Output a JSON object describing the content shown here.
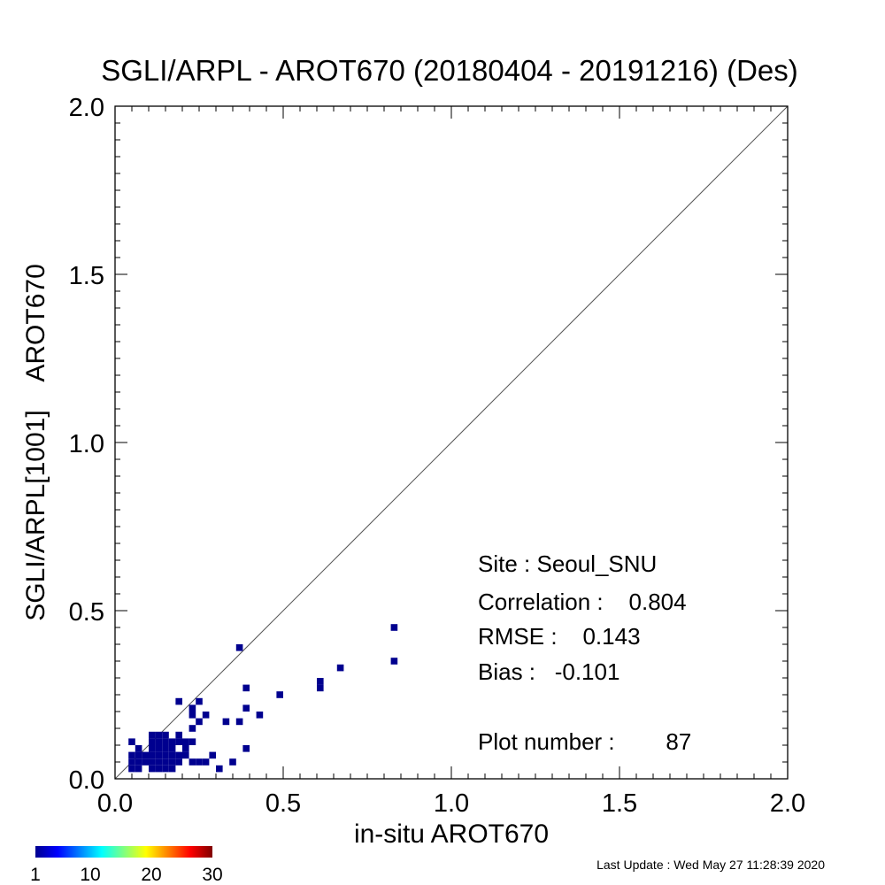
{
  "chart_data": {
    "type": "scatter",
    "title": "SGLI/ARPL - AROT670 (20180404 - 20191216) (Des)",
    "xlabel": "in-situ AROT670",
    "ylabel": "SGLI/ARPL[1001]    AROT670",
    "xlim": [
      0,
      2
    ],
    "ylim": [
      0,
      2
    ],
    "x_ticks": [
      "0.0",
      "0.5",
      "1.0",
      "1.5",
      "2.0"
    ],
    "y_ticks": [
      "0.0",
      "0.5",
      "1.0",
      "1.5",
      "2.0"
    ],
    "one_to_one_line": true,
    "grid": false,
    "bin_size": 0.02,
    "bin_color": "#00008f",
    "points": [
      [
        0.05,
        0.11
      ],
      [
        0.05,
        0.07
      ],
      [
        0.05,
        0.05
      ],
      [
        0.05,
        0.03
      ],
      [
        0.07,
        0.09
      ],
      [
        0.07,
        0.07
      ],
      [
        0.07,
        0.05
      ],
      [
        0.07,
        0.03
      ],
      [
        0.09,
        0.07
      ],
      [
        0.09,
        0.05
      ],
      [
        0.11,
        0.13
      ],
      [
        0.11,
        0.11
      ],
      [
        0.11,
        0.09
      ],
      [
        0.11,
        0.07
      ],
      [
        0.11,
        0.05
      ],
      [
        0.11,
        0.03
      ],
      [
        0.13,
        0.13
      ],
      [
        0.13,
        0.11
      ],
      [
        0.13,
        0.09
      ],
      [
        0.13,
        0.07
      ],
      [
        0.13,
        0.05
      ],
      [
        0.13,
        0.03
      ],
      [
        0.15,
        0.13
      ],
      [
        0.15,
        0.11
      ],
      [
        0.15,
        0.09
      ],
      [
        0.15,
        0.07
      ],
      [
        0.15,
        0.05
      ],
      [
        0.15,
        0.03
      ],
      [
        0.17,
        0.11
      ],
      [
        0.17,
        0.09
      ],
      [
        0.17,
        0.07
      ],
      [
        0.17,
        0.05
      ],
      [
        0.17,
        0.03
      ],
      [
        0.19,
        0.23
      ],
      [
        0.19,
        0.13
      ],
      [
        0.19,
        0.11
      ],
      [
        0.19,
        0.07
      ],
      [
        0.19,
        0.05
      ],
      [
        0.21,
        0.11
      ],
      [
        0.21,
        0.09
      ],
      [
        0.21,
        0.07
      ],
      [
        0.23,
        0.21
      ],
      [
        0.23,
        0.19
      ],
      [
        0.23,
        0.15
      ],
      [
        0.23,
        0.11
      ],
      [
        0.23,
        0.05
      ],
      [
        0.25,
        0.23
      ],
      [
        0.25,
        0.17
      ],
      [
        0.25,
        0.05
      ],
      [
        0.27,
        0.19
      ],
      [
        0.27,
        0.05
      ],
      [
        0.29,
        0.07
      ],
      [
        0.31,
        0.03
      ],
      [
        0.33,
        0.17
      ],
      [
        0.35,
        0.05
      ],
      [
        0.37,
        0.39
      ],
      [
        0.37,
        0.17
      ],
      [
        0.39,
        0.27
      ],
      [
        0.39,
        0.21
      ],
      [
        0.39,
        0.09
      ],
      [
        0.43,
        0.19
      ],
      [
        0.49,
        0.25
      ],
      [
        0.61,
        0.29
      ],
      [
        0.61,
        0.27
      ],
      [
        0.67,
        0.33
      ],
      [
        0.83,
        0.45
      ],
      [
        0.83,
        0.35
      ]
    ],
    "stats": {
      "site": "Site : Seoul_SNU",
      "correlation": "Correlation :    0.804",
      "rmse": "RMSE :    0.143",
      "bias": "Bias :   -0.101",
      "plot_number": "Plot number :        87"
    },
    "colorbar": {
      "ticks": [
        "1",
        "10",
        "20",
        "30"
      ],
      "values": [
        1,
        10,
        20,
        30
      ],
      "range": [
        1,
        30
      ],
      "colormap": "jet"
    },
    "footer": "Last Update : Wed May 27 11:28:39 2020"
  }
}
